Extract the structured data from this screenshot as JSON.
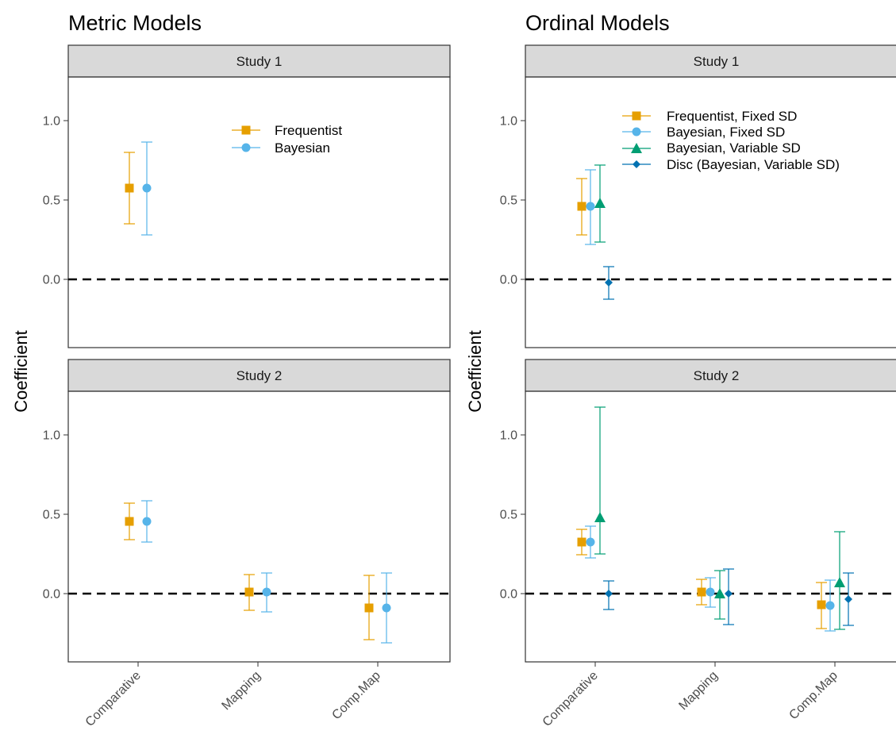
{
  "chart_data": [
    {
      "type": "scatter",
      "title": "Metric Models",
      "ylabel": "Coefficient",
      "xlabel": "",
      "ylim": [
        -0.42,
        1.27
      ],
      "yticks": [
        0.0,
        0.5,
        1.0
      ],
      "ytick_labels": [
        "0.0",
        "0.5",
        "1.0"
      ],
      "reference_line": 0,
      "legend_placement": "top-right",
      "grid": false,
      "categories": [
        "Comparative",
        "Mapping",
        "Comp.Map"
      ],
      "series": [
        {
          "name": "Frequentist",
          "color": "#E69F00",
          "shape": "square"
        },
        {
          "name": "Bayesian",
          "color": "#56B4E9",
          "shape": "circle"
        }
      ],
      "facets": [
        {
          "label": "Study 1",
          "data": [
            {
              "series": "Frequentist",
              "category": "Comparative",
              "estimate": 0.575,
              "lower": 0.35,
              "upper": 0.8
            },
            {
              "series": "Bayesian",
              "category": "Comparative",
              "estimate": 0.575,
              "lower": 0.28,
              "upper": 0.865
            }
          ]
        },
        {
          "label": "Study 2",
          "data": [
            {
              "series": "Frequentist",
              "category": "Comparative",
              "estimate": 0.455,
              "lower": 0.34,
              "upper": 0.57
            },
            {
              "series": "Bayesian",
              "category": "Comparative",
              "estimate": 0.455,
              "lower": 0.325,
              "upper": 0.585
            },
            {
              "series": "Frequentist",
              "category": "Mapping",
              "estimate": 0.01,
              "lower": -0.105,
              "upper": 0.12
            },
            {
              "series": "Bayesian",
              "category": "Mapping",
              "estimate": 0.01,
              "lower": -0.115,
              "upper": 0.13
            },
            {
              "series": "Frequentist",
              "category": "Comp.Map",
              "estimate": -0.09,
              "lower": -0.29,
              "upper": 0.115
            },
            {
              "series": "Bayesian",
              "category": "Comp.Map",
              "estimate": -0.09,
              "lower": -0.31,
              "upper": 0.13
            }
          ]
        }
      ]
    },
    {
      "type": "scatter",
      "title": "Ordinal Models",
      "ylabel": "Coefficient",
      "xlabel": "",
      "ylim": [
        -0.42,
        1.27
      ],
      "yticks": [
        0.0,
        0.5,
        1.0
      ],
      "ytick_labels": [
        "0.0",
        "0.5",
        "1.0"
      ],
      "reference_line": 0,
      "legend_placement": "top-right",
      "grid": false,
      "categories": [
        "Comparative",
        "Mapping",
        "Comp.Map"
      ],
      "series": [
        {
          "name": "Frequentist, Fixed SD",
          "color": "#E69F00",
          "shape": "square"
        },
        {
          "name": "Bayesian, Fixed SD",
          "color": "#56B4E9",
          "shape": "circle"
        },
        {
          "name": "Bayesian, Variable SD",
          "color": "#009E73",
          "shape": "triangle"
        },
        {
          "name": "Disc (Bayesian, Variable SD)",
          "color": "#0072B2",
          "shape": "diamond"
        }
      ],
      "facets": [
        {
          "label": "Study 1",
          "data": [
            {
              "series": "Frequentist, Fixed SD",
              "category": "Comparative",
              "estimate": 0.46,
              "lower": 0.28,
              "upper": 0.635
            },
            {
              "series": "Bayesian, Fixed SD",
              "category": "Comparative",
              "estimate": 0.46,
              "lower": 0.22,
              "upper": 0.69
            },
            {
              "series": "Bayesian, Variable SD",
              "category": "Comparative",
              "estimate": 0.48,
              "lower": 0.235,
              "upper": 0.72
            },
            {
              "series": "Disc (Bayesian, Variable SD)",
              "category": "Comparative",
              "estimate": -0.02,
              "lower": -0.125,
              "upper": 0.08
            }
          ]
        },
        {
          "label": "Study 2",
          "data": [
            {
              "series": "Frequentist, Fixed SD",
              "category": "Comparative",
              "estimate": 0.325,
              "lower": 0.245,
              "upper": 0.405
            },
            {
              "series": "Bayesian, Fixed SD",
              "category": "Comparative",
              "estimate": 0.325,
              "lower": 0.225,
              "upper": 0.425
            },
            {
              "series": "Bayesian, Variable SD",
              "category": "Comparative",
              "estimate": 0.48,
              "lower": 0.25,
              "upper": 1.175
            },
            {
              "series": "Disc (Bayesian, Variable SD)",
              "category": "Comparative",
              "estimate": 0.0,
              "lower": -0.1,
              "upper": 0.08
            },
            {
              "series": "Frequentist, Fixed SD",
              "category": "Mapping",
              "estimate": 0.01,
              "lower": -0.07,
              "upper": 0.09
            },
            {
              "series": "Bayesian, Fixed SD",
              "category": "Mapping",
              "estimate": 0.01,
              "lower": -0.085,
              "upper": 0.1
            },
            {
              "series": "Bayesian, Variable SD",
              "category": "Mapping",
              "estimate": 0.0,
              "lower": -0.16,
              "upper": 0.145
            },
            {
              "series": "Disc (Bayesian, Variable SD)",
              "category": "Mapping",
              "estimate": 0.0,
              "lower": -0.195,
              "upper": 0.155
            },
            {
              "series": "Frequentist, Fixed SD",
              "category": "Comp.Map",
              "estimate": -0.07,
              "lower": -0.22,
              "upper": 0.07
            },
            {
              "series": "Bayesian, Fixed SD",
              "category": "Comp.Map",
              "estimate": -0.075,
              "lower": -0.235,
              "upper": 0.085
            },
            {
              "series": "Bayesian, Variable SD",
              "category": "Comp.Map",
              "estimate": 0.07,
              "lower": -0.225,
              "upper": 0.39
            },
            {
              "series": "Disc (Bayesian, Variable SD)",
              "category": "Comp.Map",
              "estimate": -0.035,
              "lower": -0.2,
              "upper": 0.13
            }
          ]
        }
      ]
    }
  ]
}
